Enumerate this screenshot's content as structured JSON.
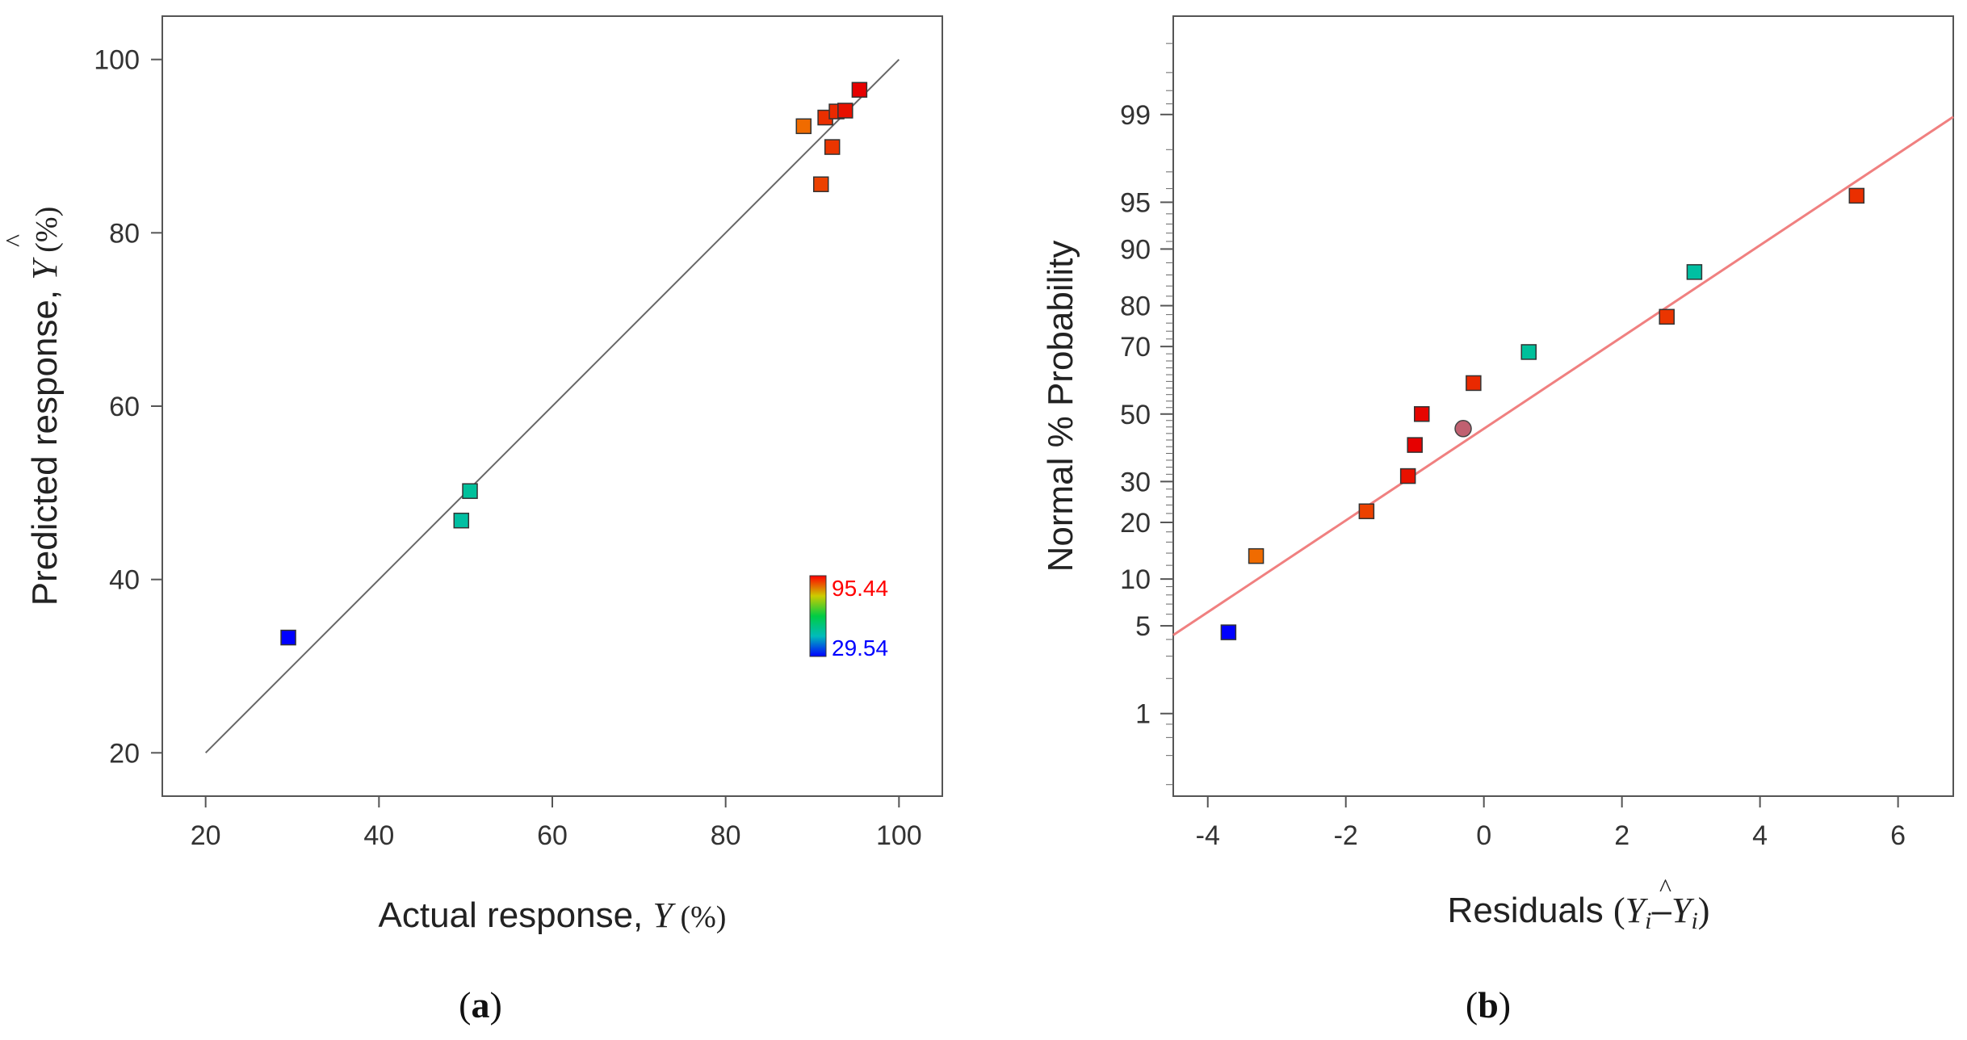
{
  "colors": {
    "frame": "#555555",
    "identity_line": "#666666",
    "fit_line": "#f08080",
    "scale_high": "#ff0000",
    "scale_mid": "#00cc66",
    "scale_low": "#0000ff",
    "center_point": "#c06070"
  },
  "chart_data": [
    {
      "id": "a",
      "type": "scatter",
      "panel_label_open": "(",
      "panel_label": "a",
      "panel_label_close": ")",
      "xlabel_text": "Actual response, ",
      "xlabel_symbol": "Y",
      "xlabel_unit": " (%)",
      "ylabel_text": "Predicted response, ",
      "ylabel_symbol": "Y",
      "ylabel_hat": "^",
      "ylabel_unit": " (%)",
      "xlim": [
        15,
        105
      ],
      "ylim": [
        15,
        105
      ],
      "xticks": [
        20,
        40,
        60,
        80,
        100
      ],
      "yticks": [
        20,
        40,
        60,
        80,
        100
      ],
      "identity_line": [
        [
          20,
          20
        ],
        [
          100,
          100
        ]
      ],
      "colorbar": {
        "max_label": "95.44",
        "min_label": "29.54",
        "max": 95.44,
        "min": 29.54
      },
      "points": [
        {
          "x": 29.54,
          "y": 33.3,
          "value": 29.54
        },
        {
          "x": 49.5,
          "y": 46.8,
          "value": 49.5
        },
        {
          "x": 50.5,
          "y": 50.2,
          "value": 50.5
        },
        {
          "x": 89.0,
          "y": 92.3,
          "value": 86.5
        },
        {
          "x": 91.0,
          "y": 85.6,
          "value": 90.0
        },
        {
          "x": 91.5,
          "y": 93.3,
          "value": 91.5
        },
        {
          "x": 92.3,
          "y": 89.9,
          "value": 91.0
        },
        {
          "x": 92.8,
          "y": 94.0,
          "value": 92.0
        },
        {
          "x": 93.8,
          "y": 94.1,
          "value": 94.0
        },
        {
          "x": 95.44,
          "y": 96.5,
          "value": 95.44
        }
      ]
    },
    {
      "id": "b",
      "type": "scatter",
      "panel_label_open": "(",
      "panel_label": "b",
      "panel_label_close": ")",
      "xlabel_text": "Residuals ",
      "xlabel_open": "(",
      "xlabel_y": "Y",
      "xlabel_i": "i",
      "xlabel_minus": "–",
      "xlabel_yhat": "Y",
      "xlabel_hat": "^",
      "xlabel_i2": "i",
      "xlabel_close": ")",
      "ylabel": "Normal % Probability",
      "xlim": [
        -4.5,
        6.8
      ],
      "ylim_probability": [
        0.15,
        99.9
      ],
      "xticks": [
        -4,
        -2,
        0,
        2,
        4,
        6
      ],
      "yticks": [
        1,
        5,
        10,
        20,
        30,
        50,
        70,
        80,
        90,
        95,
        99
      ],
      "fit_line": [
        [
          -4.5,
          4.3
        ],
        [
          6.8,
          98.95
        ]
      ],
      "points": [
        {
          "residual": -3.7,
          "probability": 4.5,
          "value": 29.54,
          "shape": "square"
        },
        {
          "residual": -3.3,
          "probability": 13.5,
          "value": 86.5,
          "shape": "square"
        },
        {
          "residual": -1.7,
          "probability": 22.5,
          "value": 90.0,
          "shape": "square"
        },
        {
          "residual": -1.1,
          "probability": 31.5,
          "value": 94.0,
          "shape": "square"
        },
        {
          "residual": -1.0,
          "probability": 40.5,
          "value": 95.44,
          "shape": "square"
        },
        {
          "residual": -0.9,
          "probability": 50.0,
          "value": 95.0,
          "shape": "square"
        },
        {
          "residual": -0.3,
          "probability": 45.5,
          "value": 62.0,
          "shape": "circle"
        },
        {
          "residual": -0.15,
          "probability": 59.5,
          "value": 92.0,
          "shape": "square"
        },
        {
          "residual": 0.65,
          "probability": 68.5,
          "value": 50.5,
          "shape": "square"
        },
        {
          "residual": 2.65,
          "probability": 77.5,
          "value": 91.0,
          "shape": "square"
        },
        {
          "residual": 3.05,
          "probability": 86.5,
          "value": 49.5,
          "shape": "square"
        },
        {
          "residual": 5.4,
          "probability": 95.5,
          "value": 91.5,
          "shape": "square"
        }
      ]
    }
  ]
}
